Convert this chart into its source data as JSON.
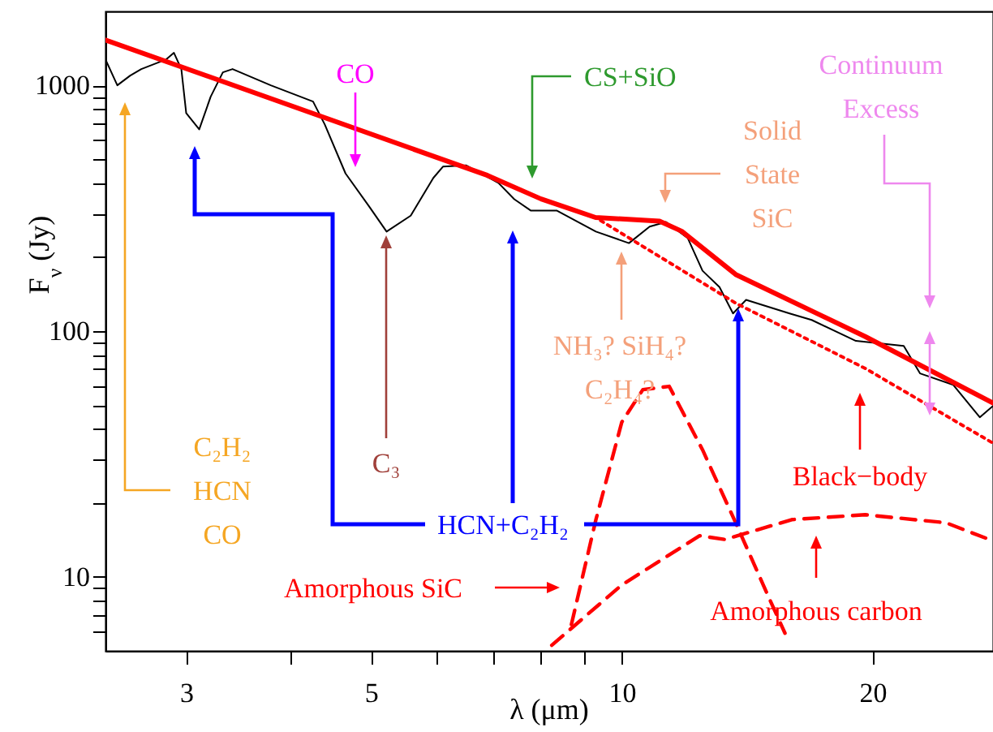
{
  "chart_data": {
    "type": "line",
    "xlabel": "λ (μm)",
    "ylabel": "F$_{ν}$ (Jy)",
    "log": "xy",
    "grid": false,
    "xlim": [
      2.4,
      27.9
    ],
    "ylim": [
      5,
      2000
    ],
    "xticks": [
      3,
      {
        "value": 4,
        "label": null
      },
      5,
      {
        "value": 6,
        "label": null
      },
      {
        "value": 7,
        "label": null
      },
      {
        "value": 8,
        "label": null
      },
      {
        "value": 9,
        "label": null
      },
      10,
      20
    ],
    "yticks": [
      {
        "value": 6,
        "label": null
      },
      {
        "value": 7,
        "label": null
      },
      {
        "value": 8,
        "label": null
      },
      {
        "value": 9,
        "label": null
      },
      10,
      {
        "value": 20,
        "label": null
      },
      {
        "value": 30,
        "label": null
      },
      {
        "value": 40,
        "label": null
      },
      {
        "value": 50,
        "label": null
      },
      {
        "value": 60,
        "label": null
      },
      {
        "value": 70,
        "label": null
      },
      {
        "value": 80,
        "label": null
      },
      {
        "value": 90,
        "label": null
      },
      100,
      {
        "value": 200,
        "label": null
      },
      {
        "value": 300,
        "label": null
      },
      {
        "value": 400,
        "label": null
      },
      {
        "value": 500,
        "label": null
      },
      {
        "value": 600,
        "label": null
      },
      {
        "value": 700,
        "label": null
      },
      {
        "value": 800,
        "label": null
      },
      {
        "value": 900,
        "label": null
      },
      1000
    ],
    "series": [
      {
        "color": "#000000",
        "line_style": "solid",
        "x": [
          2.4,
          2.48,
          2.57,
          2.65,
          2.84,
          2.9,
          2.96,
          3.0,
          3.11,
          3.21,
          3.32,
          3.41,
          3.79,
          4.26,
          4.4,
          4.66,
          4.97,
          5.22,
          5.58,
          5.94,
          6.1,
          6.5,
          7.11,
          7.43,
          7.78,
          8.36,
          9.31,
          10.2,
          10.8,
          11.3,
          12.0,
          12.5,
          13.1,
          13.6,
          14.1,
          15.9,
          16.9,
          19.1,
          21.8,
          22.8,
          25.0,
          26.9,
          27.9
        ],
        "values": [
          1276,
          1000,
          1096,
          1165,
          1276,
          1356,
          1165,
          771,
          662,
          899,
          1130,
          1165,
          1000,
          859,
          693,
          438,
          323,
          254,
          295,
          420,
          467,
          473,
          401,
          344,
          309,
          309,
          254,
          228,
          266,
          278,
          239,
          176,
          151,
          118,
          134,
          118,
          111,
          91.2,
          87.1,
          67.3,
          60.4,
          44.6,
          49.6
        ]
      },
      {
        "color": "#ff0000",
        "line_style": "dotted",
        "x": [
          2.4,
          6.9,
          8.0,
          9.3,
          13.7,
          19.6,
          27.9
        ],
        "values": [
          1530,
          430,
          345,
          290,
          130,
          70.5,
          35
        ]
      },
      {
        "color": "#ff0000",
        "line_style": "solid",
        "x": [
          2.4,
          6.9,
          8.0,
          9.3,
          11.1,
          11.8,
          13.7,
          19.6,
          27.9
        ],
        "values": [
          1530,
          430,
          345,
          290,
          280,
          255,
          170,
          95,
          51
        ]
      },
      {
        "color": "#ff0000",
        "line_style": "dashed",
        "x": [
          8.7,
          9.31,
          10.0,
          10.6,
          11.4,
          12.5,
          13.7,
          15.0,
          15.7
        ],
        "values": [
          6.4,
          17.1,
          42.6,
          57.8,
          59.6,
          32.9,
          16.6,
          8.3,
          5.9
        ]
      },
      {
        "color": "#ff0000",
        "line_style": "dashed",
        "x": [
          8.24,
          10.0,
          12.4,
          13.3,
          16.0,
          19.6,
          24.5,
          27.9
        ],
        "values": [
          5.27,
          9.27,
          14.7,
          14.2,
          17.1,
          17.9,
          16.6,
          14.0
        ]
      }
    ],
    "annotations": [
      "CO",
      "C₃",
      "CS+SiO",
      "Solid\nState\nSiC",
      "NH₃? SiH₄?\nC₂H₄?",
      "Continuum\nExcess",
      "Black−body",
      "Amorphous carbon",
      "Amorphous SiC",
      "C₂H₂\nHCN\nCO",
      "HCN+C₂H₂"
    ]
  }
}
